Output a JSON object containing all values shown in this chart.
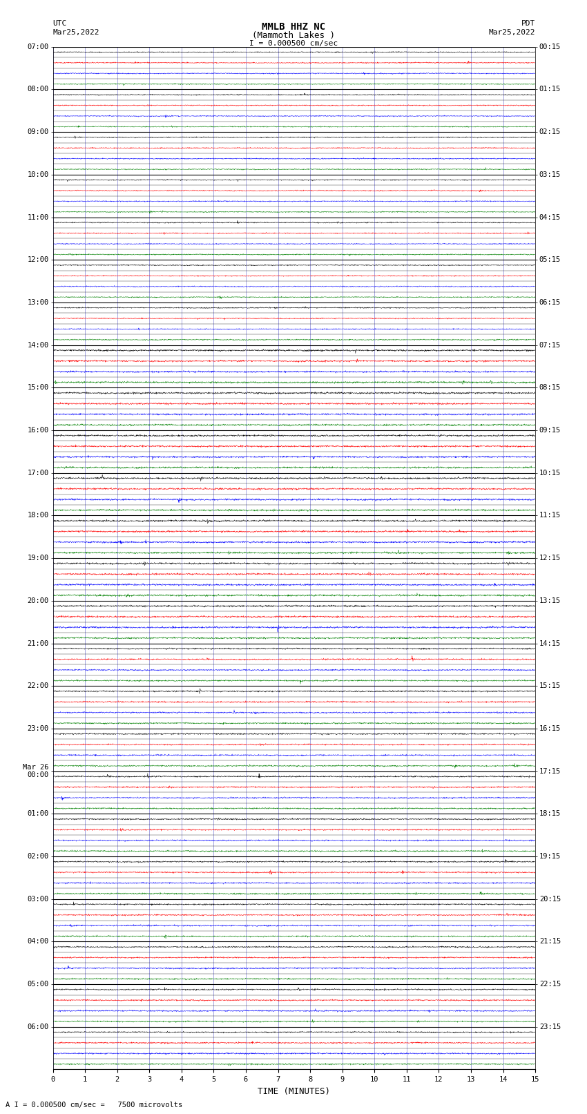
{
  "title_line1": "MMLB HHZ NC",
  "title_line2": "(Mammoth Lakes )",
  "scale_text": "I = 0.000500 cm/sec",
  "left_label_top": "UTC",
  "left_label_date": "Mar25,2022",
  "right_label_top": "PDT",
  "right_label_date": "Mar25,2022",
  "xlabel": "TIME (MINUTES)",
  "bottom_note": "A I = 0.000500 cm/sec =   7500 microvolts",
  "xlim": [
    0,
    15
  ],
  "xticks": [
    0,
    1,
    2,
    3,
    4,
    5,
    6,
    7,
    8,
    9,
    10,
    11,
    12,
    13,
    14,
    15
  ],
  "colors": [
    "black",
    "red",
    "blue",
    "green"
  ],
  "bg_color": "#ffffff",
  "grid_color": "#6666cc",
  "num_rows": 96,
  "figwidth": 8.5,
  "figheight": 16.13,
  "left_times": [
    "07:00",
    "",
    "",
    "",
    "08:00",
    "",
    "",
    "",
    "09:00",
    "",
    "",
    "",
    "10:00",
    "",
    "",
    "",
    "11:00",
    "",
    "",
    "",
    "12:00",
    "",
    "",
    "",
    "13:00",
    "",
    "",
    "",
    "14:00",
    "",
    "",
    "",
    "15:00",
    "",
    "",
    "",
    "16:00",
    "",
    "",
    "",
    "17:00",
    "",
    "",
    "",
    "18:00",
    "",
    "",
    "",
    "19:00",
    "",
    "",
    "",
    "20:00",
    "",
    "",
    "",
    "21:00",
    "",
    "",
    "",
    "22:00",
    "",
    "",
    "",
    "23:00",
    "",
    "",
    "",
    "Mar 26\n00:00",
    "",
    "",
    "",
    "01:00",
    "",
    "",
    "",
    "02:00",
    "",
    "",
    "",
    "03:00",
    "",
    "",
    "",
    "04:00",
    "",
    "",
    "",
    "05:00",
    "",
    "",
    "",
    "06:00",
    "",
    "",
    ""
  ],
  "right_times": [
    "00:15",
    "",
    "",
    "",
    "01:15",
    "",
    "",
    "",
    "02:15",
    "",
    "",
    "",
    "03:15",
    "",
    "",
    "",
    "04:15",
    "",
    "",
    "",
    "05:15",
    "",
    "",
    "",
    "06:15",
    "",
    "",
    "",
    "07:15",
    "",
    "",
    "",
    "08:15",
    "",
    "",
    "",
    "09:15",
    "",
    "",
    "",
    "10:15",
    "",
    "",
    "",
    "11:15",
    "",
    "",
    "",
    "12:15",
    "",
    "",
    "",
    "13:15",
    "",
    "",
    "",
    "14:15",
    "",
    "",
    "",
    "15:15",
    "",
    "",
    "",
    "16:15",
    "",
    "",
    "",
    "17:15",
    "",
    "",
    "",
    "18:15",
    "",
    "",
    "",
    "19:15",
    "",
    "",
    "",
    "20:15",
    "",
    "",
    "",
    "21:15",
    "",
    "",
    "",
    "22:15",
    "",
    "",
    "",
    "23:15",
    "",
    "",
    ""
  ]
}
